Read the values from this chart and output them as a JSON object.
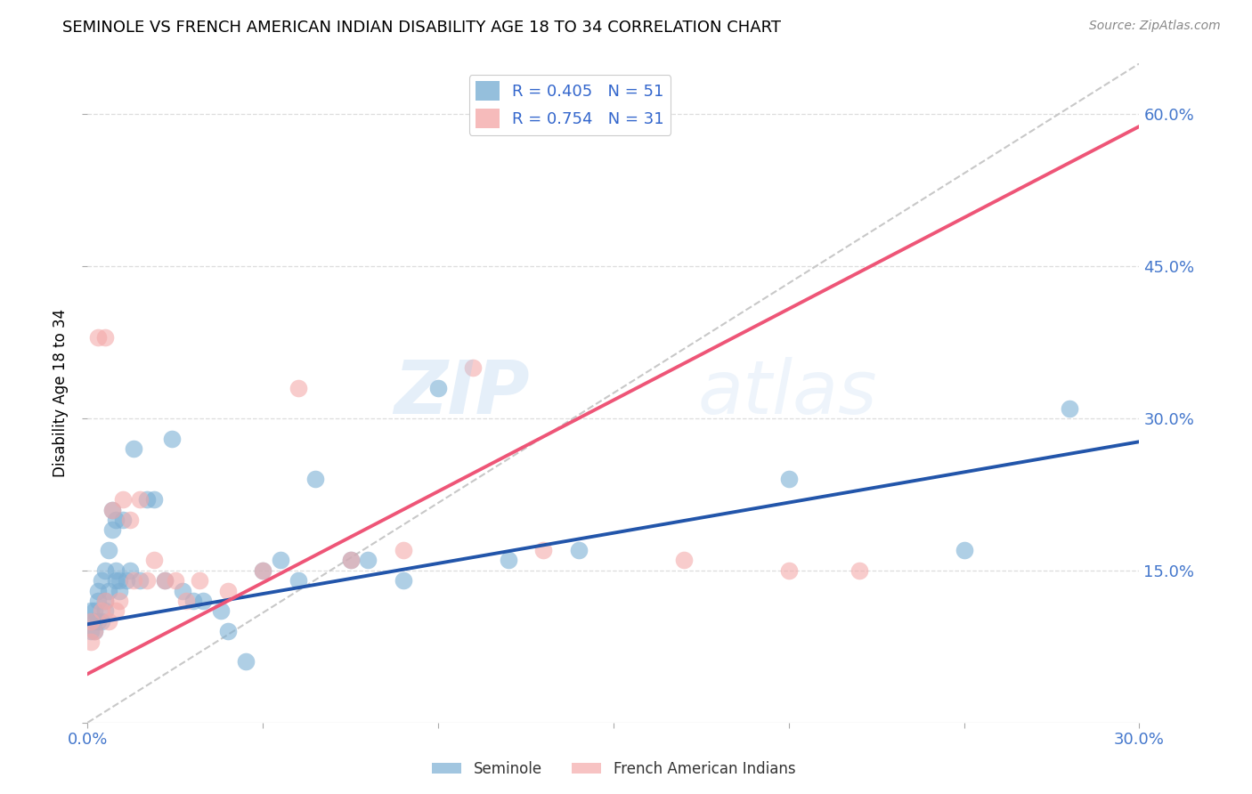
{
  "title": "SEMINOLE VS FRENCH AMERICAN INDIAN DISABILITY AGE 18 TO 34 CORRELATION CHART",
  "source": "Source: ZipAtlas.com",
  "ylabel": "Disability Age 18 to 34",
  "xlim": [
    0.0,
    0.3
  ],
  "ylim": [
    0.0,
    0.65
  ],
  "xticks": [
    0.0,
    0.05,
    0.1,
    0.15,
    0.2,
    0.25,
    0.3
  ],
  "yticks": [
    0.0,
    0.15,
    0.3,
    0.45,
    0.6
  ],
  "xtick_labels": [
    "0.0%",
    "",
    "",
    "",
    "",
    "",
    "30.0%"
  ],
  "right_ytick_labels": [
    "",
    "15.0%",
    "30.0%",
    "45.0%",
    "60.0%"
  ],
  "seminole_color": "#7BAFD4",
  "french_color": "#F4AAAA",
  "seminole_line_color": "#2255AA",
  "french_line_color": "#EE5577",
  "diagonal_color": "#C8C8C8",
  "R_seminole": 0.405,
  "N_seminole": 51,
  "R_french": 0.754,
  "N_french": 31,
  "watermark": "ZIPatlas",
  "seminole_x": [
    0.001,
    0.001,
    0.001,
    0.002,
    0.002,
    0.002,
    0.003,
    0.003,
    0.003,
    0.004,
    0.004,
    0.005,
    0.005,
    0.005,
    0.006,
    0.006,
    0.007,
    0.007,
    0.008,
    0.008,
    0.008,
    0.009,
    0.009,
    0.01,
    0.011,
    0.012,
    0.013,
    0.015,
    0.017,
    0.019,
    0.022,
    0.024,
    0.027,
    0.03,
    0.033,
    0.038,
    0.04,
    0.045,
    0.05,
    0.055,
    0.06,
    0.065,
    0.075,
    0.08,
    0.09,
    0.1,
    0.12,
    0.14,
    0.2,
    0.25,
    0.28
  ],
  "seminole_y": [
    0.09,
    0.1,
    0.11,
    0.09,
    0.1,
    0.11,
    0.1,
    0.12,
    0.13,
    0.1,
    0.14,
    0.11,
    0.12,
    0.15,
    0.13,
    0.17,
    0.19,
    0.21,
    0.14,
    0.15,
    0.2,
    0.13,
    0.14,
    0.2,
    0.14,
    0.15,
    0.27,
    0.14,
    0.22,
    0.22,
    0.14,
    0.28,
    0.13,
    0.12,
    0.12,
    0.11,
    0.09,
    0.06,
    0.15,
    0.16,
    0.14,
    0.24,
    0.16,
    0.16,
    0.14,
    0.33,
    0.16,
    0.17,
    0.24,
    0.17,
    0.31
  ],
  "french_x": [
    0.001,
    0.001,
    0.002,
    0.003,
    0.004,
    0.005,
    0.005,
    0.006,
    0.007,
    0.008,
    0.009,
    0.01,
    0.012,
    0.013,
    0.015,
    0.017,
    0.019,
    0.022,
    0.025,
    0.028,
    0.032,
    0.04,
    0.05,
    0.06,
    0.075,
    0.09,
    0.11,
    0.13,
    0.17,
    0.2,
    0.22
  ],
  "french_y": [
    0.08,
    0.1,
    0.09,
    0.38,
    0.11,
    0.12,
    0.38,
    0.1,
    0.21,
    0.11,
    0.12,
    0.22,
    0.2,
    0.14,
    0.22,
    0.14,
    0.16,
    0.14,
    0.14,
    0.12,
    0.14,
    0.13,
    0.15,
    0.33,
    0.16,
    0.17,
    0.35,
    0.17,
    0.16,
    0.15,
    0.15
  ],
  "background_color": "#FFFFFF",
  "grid_color": "#DDDDDD"
}
